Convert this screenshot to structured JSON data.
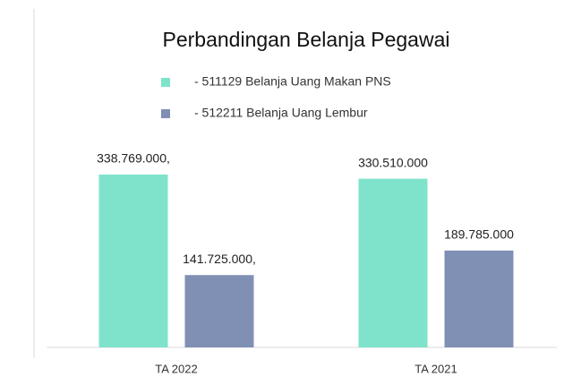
{
  "chart_data": {
    "type": "bar",
    "title": "Perbandingan Belanja Pegawai",
    "categories": [
      "TA 2022",
      "TA 2021"
    ],
    "series": [
      {
        "name": "- 511129 Belanja Uang Makan PNS",
        "color": "#7fe3cc",
        "values": [
          338769000,
          330510000
        ],
        "value_labels": [
          "338.769.000,",
          "330.510.000"
        ]
      },
      {
        "name": "- 512211 Belanja Uang Lembur",
        "color": "#8090b4",
        "values": [
          141725000,
          189785000
        ],
        "value_labels": [
          "141.725.000,",
          "189.785.000"
        ]
      }
    ],
    "ylim": [
      0,
      400000000
    ]
  }
}
